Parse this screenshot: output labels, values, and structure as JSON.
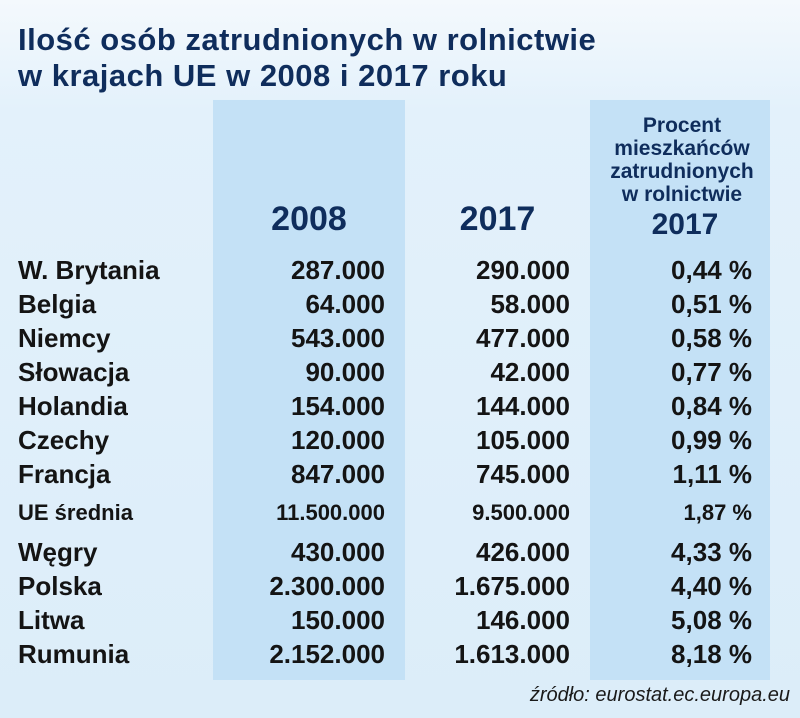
{
  "header": {
    "title": [
      "Ilość osób zatrudnionych w rolnictwie",
      "w krajach UE w 2008 i 2017 roku"
    ]
  },
  "table": {
    "columns": [
      "2008",
      "2017",
      {
        "lines": [
          "Procent",
          "mieszkańców",
          "zatrudnionych",
          "w rolnictwie"
        ],
        "year": "2017"
      }
    ],
    "rows": [
      [
        "W. Brytania",
        "287.000",
        "290.000",
        "0,44 %"
      ],
      [
        "Belgia",
        "64.000",
        "58.000",
        "0,51 %"
      ],
      [
        "Niemcy",
        "543.000",
        "477.000",
        "0,58 %"
      ],
      [
        "Słowacja",
        "90.000",
        "42.000",
        "0,77 %"
      ],
      [
        "Holandia",
        "154.000",
        "144.000",
        "0,84 %"
      ],
      [
        "Czechy",
        "120.000",
        "105.000",
        "0,99 %"
      ],
      [
        "Francja",
        "847.000",
        "745.000",
        "1,11 %"
      ],
      [
        "UE średnia",
        "11.500.000",
        "9.500.000",
        "1,87 %"
      ],
      [
        "Węgry",
        "430.000",
        "426.000",
        "4,33 %"
      ],
      [
        "Polska",
        "2.300.000",
        "1.675.000",
        "4,40 %"
      ],
      [
        "Litwa",
        "150.000",
        "146.000",
        "5,08 %"
      ],
      [
        "Rumunia",
        "2.152.000",
        "1.613.000",
        "8,18 %"
      ]
    ]
  },
  "footer": {
    "source": "źródło: eurostat.ec.europa.eu"
  }
}
